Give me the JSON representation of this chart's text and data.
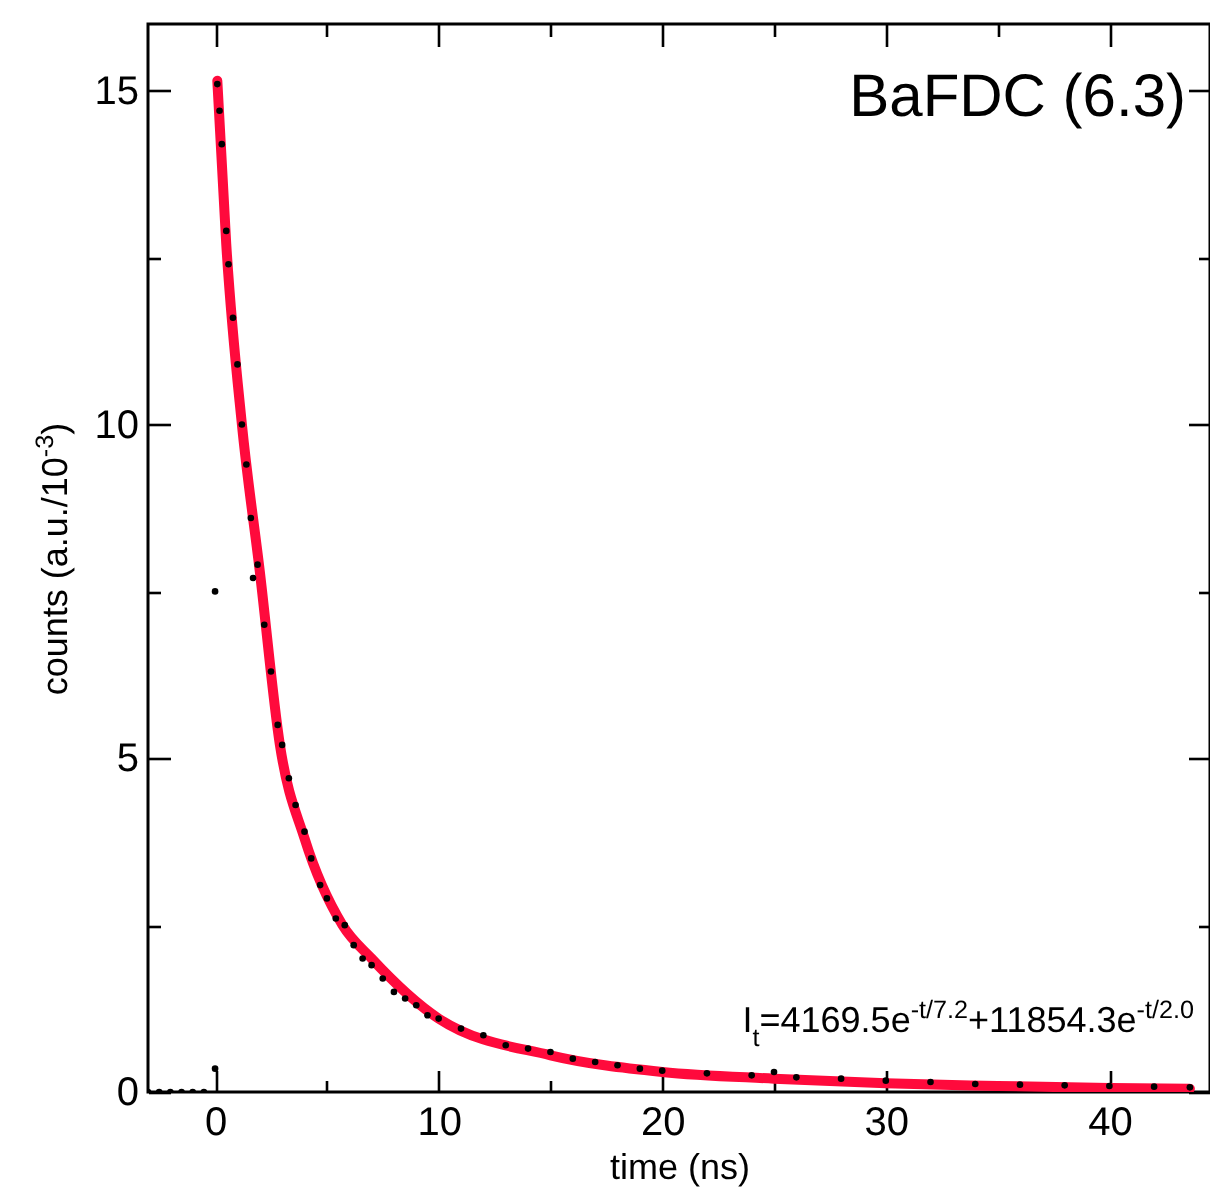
{
  "chart_data": {
    "type": "scatter",
    "title": "BaFDC (6.3)",
    "xlabel": "time (ns)",
    "ylabel": "counts (a.u./10$^{-3}$)",
    "annotations": [
      "I$_{t}$=4169.5e$^{-t/7.2}$+11854.3e$^{-t/2.0}$"
    ],
    "xlim": [
      -3,
      44.5
    ],
    "xticks": [
      0,
      {
        "value": 5,
        "label": null
      },
      10,
      {
        "value": 15,
        "label": null
      },
      20,
      {
        "value": 25,
        "label": null
      },
      30,
      {
        "value": 35,
        "label": null
      },
      40
    ],
    "ylim": [
      0,
      16
    ],
    "yticks": [
      0,
      {
        "value": 2.5,
        "label": null
      },
      5,
      {
        "value": 7.5,
        "label": null
      },
      10,
      {
        "value": 12.5,
        "label": null
      },
      15
    ],
    "grid": false,
    "line_style": "solid",
    "series": [
      {
        "marker": "circle",
        "color": "#000000",
        "x": [
          -3,
          -2.5,
          -2,
          -1.5,
          -1,
          -0.5,
          0,
          0,
          0.1,
          0.2,
          0.3,
          0.5,
          0.6,
          0.8,
          1.0,
          1.2,
          1.4,
          1.6,
          1.7,
          1.9,
          2.2,
          2.5,
          2.8,
          3.0,
          3.3,
          3.6,
          4.0,
          4.3,
          4.7,
          5.0,
          5.4,
          5.8,
          6.2,
          6.6,
          7.0,
          7.5,
          8.0,
          8.5,
          9.0,
          9.5,
          10,
          11,
          12,
          13,
          14,
          15,
          16,
          17,
          18,
          19,
          20,
          22,
          24,
          25,
          26,
          28,
          30,
          32,
          34,
          36,
          38,
          40,
          42,
          43.6
        ],
        "values": [
          0,
          0,
          0,
          0,
          0,
          0,
          7.5,
          0.35,
          15.1,
          14.7,
          14.2,
          12.9,
          12.4,
          11.6,
          10.9,
          10.0,
          9.4,
          8.6,
          7.7,
          7.9,
          7.0,
          6.3,
          5.5,
          5.2,
          4.7,
          4.3,
          3.9,
          3.5,
          3.1,
          2.9,
          2.6,
          2.5,
          2.2,
          2.0,
          1.9,
          1.7,
          1.5,
          1.4,
          1.3,
          1.15,
          1.1,
          0.95,
          0.85,
          0.7,
          0.65,
          0.6,
          0.5,
          0.45,
          0.4,
          0.35,
          0.32,
          0.28,
          0.25,
          0.3,
          0.22,
          0.2,
          0.17,
          0.15,
          0.12,
          0.11,
          0.1,
          0.09,
          0.08,
          0.07
        ]
      },
      {
        "type": "line",
        "color": "#ff0a3c",
        "x": [
          0.1,
          0.5,
          1.2,
          2,
          2.9,
          4,
          5.7,
          7,
          10,
          15,
          20,
          25,
          30,
          35,
          40,
          43.6
        ],
        "values": [
          15.15,
          12.7,
          10,
          7.8,
          5.2,
          3.8,
          2.5,
          2.0,
          1.1,
          0.55,
          0.3,
          0.2,
          0.13,
          0.09,
          0.06,
          0.05
        ]
      }
    ]
  }
}
